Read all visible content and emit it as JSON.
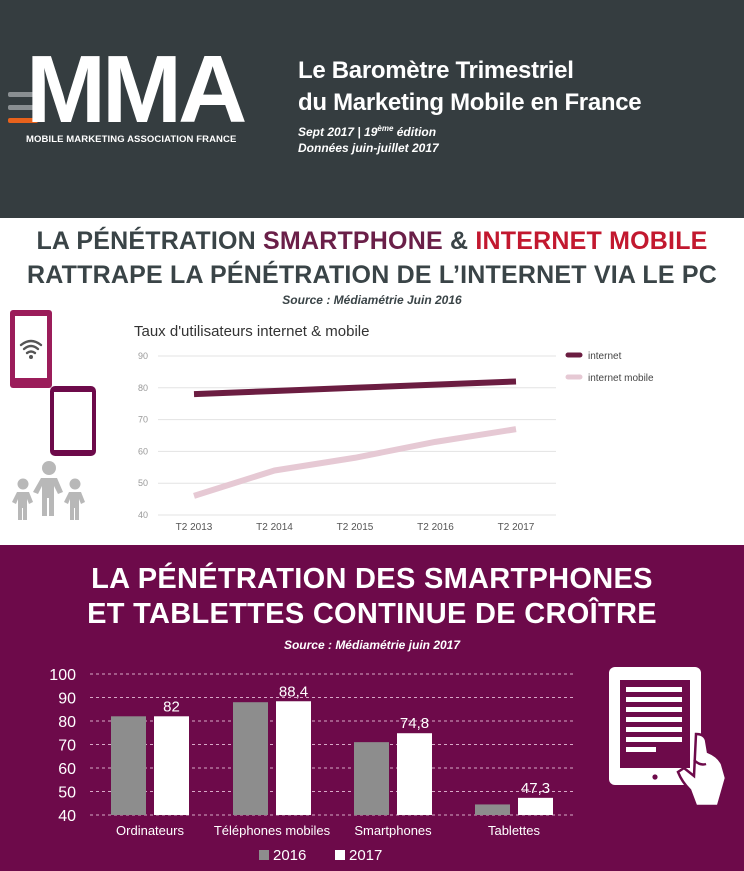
{
  "header": {
    "logo_text": "MMA",
    "logo_subtitle": "MOBILE MARKETING ASSOCIATION FRANCE",
    "title_line1": "Le Baromètre Trimestriel",
    "title_line2": "du Marketing Mobile en France",
    "edition_prefix": "Sept 2017 | 19",
    "edition_sup": "ème",
    "edition_suffix": " édition",
    "data_period": "Données juin-juillet 2017",
    "colors": {
      "background": "#353d40",
      "accent_orange": "#e8621c",
      "bar_grey": "#8a8f92"
    }
  },
  "section1": {
    "title_part1": "LA PÉNÉTRATION ",
    "title_smartphone": "SMARTPHONE",
    "title_amp": " & ",
    "title_internet_mobile": "INTERNET MOBILE",
    "title_line2": "RATTRAPE LA PÉNÉTRATION DE L’INTERNET VIA LE PC",
    "source": "Source : Médiamétrie Juin 2016",
    "icons": [
      "smartphone-wifi-icon",
      "tablet-icon",
      "people-group-icon"
    ]
  },
  "section2": {
    "title_line1": "LA PÉNÉTRATION DES SMARTPHONES",
    "title_line2": "ET TABLETTES CONTINUE DE CROÎTRE",
    "source": "Source : Médiamétrie  juin 2017",
    "icons": [
      "tablet-hand-icon"
    ]
  },
  "chart_data": [
    {
      "type": "line",
      "title": "Taux d'utilisateurs internet & mobile",
      "categories": [
        "T2 2013",
        "T2 2014",
        "T2 2015",
        "T2 2016",
        "T2 2017"
      ],
      "series": [
        {
          "name": "internet",
          "color": "#6b1d41",
          "values": [
            78,
            79,
            80,
            81,
            82
          ]
        },
        {
          "name": "internet mobile",
          "color": "#e6c9d4",
          "values": [
            46,
            54,
            58,
            63,
            67
          ]
        }
      ],
      "yticks": [
        40,
        50,
        60,
        70,
        80,
        90
      ],
      "ylim": [
        40,
        90
      ],
      "legend": "right",
      "grid": true
    },
    {
      "type": "bar",
      "categories": [
        "Ordinateurs",
        "Téléphones mobiles",
        "Smartphones",
        "Tablettes"
      ],
      "series": [
        {
          "name": "2016",
          "color": "#8d8d8d",
          "values": [
            82,
            88,
            71,
            44.5
          ]
        },
        {
          "name": "2017",
          "color": "#ffffff",
          "values": [
            82,
            88.4,
            74.8,
            47.3
          ]
        }
      ],
      "data_labels": [
        "82",
        "88,4",
        "74,8",
        "47,3"
      ],
      "yticks": [
        "40",
        "50",
        "60",
        "70",
        "80",
        "90",
        "100"
      ],
      "ylim": [
        40,
        100
      ],
      "legend": "bottom",
      "grid": true
    }
  ]
}
